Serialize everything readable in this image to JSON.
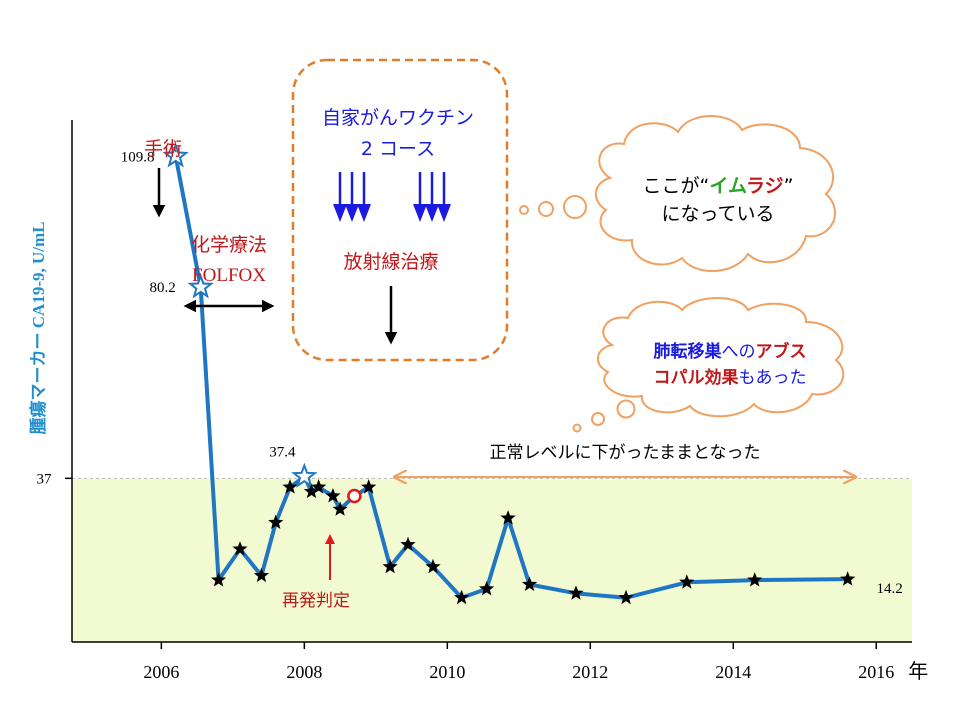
{
  "chart_data": {
    "type": "line",
    "ylabel": "腫瘍マーカー CA19-9, U/mL",
    "x_unit": "年",
    "x_ticks": [
      2006,
      2008,
      2010,
      2012,
      2014,
      2016
    ],
    "x_range": [
      2004.75,
      2016.5
    ],
    "y_range": [
      0,
      118
    ],
    "y_ticks": [
      37
    ],
    "normal_threshold": 37,
    "series": [
      {
        "x": [
          2006.2,
          2006.55,
          2006.8,
          2007.1,
          2007.4,
          2007.6,
          2007.8,
          2008.0,
          2008.1,
          2008.2,
          2008.4,
          2008.5,
          2008.7,
          2008.9,
          2009.2,
          2009.45,
          2009.8,
          2010.2,
          2010.55,
          2010.85,
          2011.15,
          2011.8,
          2012.5,
          2013.35,
          2014.3,
          2015.6
        ],
        "y": [
          109.8,
          80.2,
          14,
          21,
          15,
          27,
          35,
          37.4,
          34,
          35,
          33,
          30,
          33,
          35,
          17,
          22,
          17,
          10,
          12,
          28,
          13,
          11,
          10,
          13.5,
          14,
          14.2
        ],
        "markers": [
          "hollow-star",
          "hollow-star",
          "star",
          "star",
          "star",
          "star",
          "star",
          "hollow-star",
          "star",
          "star",
          "star",
          "star",
          "circle",
          "star",
          "star",
          "star",
          "star",
          "star",
          "star",
          "star",
          "star",
          "star",
          "star",
          "star",
          "star",
          "star"
        ]
      }
    ],
    "data_labels": [
      {
        "text": "109.8",
        "point": 0
      },
      {
        "text": "80.2",
        "point": 1
      },
      {
        "text": "37.4",
        "point": 7
      },
      {
        "text": "14.2",
        "point": 25
      }
    ],
    "colors": {
      "line": "#1f77c4",
      "threshold_fill": "#f2fad2",
      "red": "#c0181a",
      "blue": "#1a1ae0",
      "orange": "#f0a060",
      "orange_dash": "#e07d2a",
      "green": "#26a626"
    }
  },
  "annotations": {
    "surgery": "手術",
    "chemo_line1": "化学療法",
    "chemo_line2": "FOLFOX",
    "vaccine_line1": "自家がんワクチン",
    "vaccine_line2": "2 コース",
    "radiation": "放射線治療",
    "recurrence": "再発判定",
    "normal_level": "正常レベルに下がったままとなった",
    "cloud1_pre": "ここが“",
    "cloud1_em1": "イム",
    "cloud1_em2": "ラジ",
    "cloud1_post": "”",
    "cloud1_line2": "になっている",
    "cloud2_l1a": "肺転移巣",
    "cloud2_l1b": "への",
    "cloud2_l1c": "アブス",
    "cloud2_l2a": "コパル効果",
    "cloud2_l2b": "も",
    "cloud2_l2c": "あった"
  }
}
